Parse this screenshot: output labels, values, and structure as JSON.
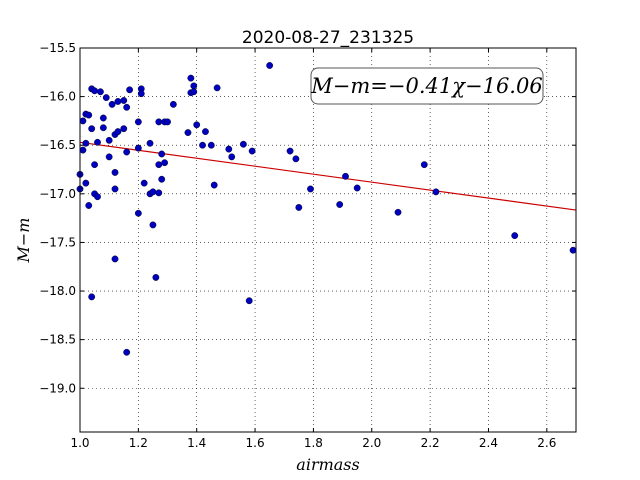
{
  "chart_data": {
    "type": "scatter",
    "title": "2020-08-27_231325",
    "xlabel": "airmass",
    "ylabel": "M−m",
    "xlim": [
      1.0,
      2.7
    ],
    "ylim": [
      -15.5,
      -19.45
    ],
    "y_inverted": true,
    "grid": true,
    "x_ticks": [
      1.0,
      1.2,
      1.4,
      1.6,
      1.8,
      2.0,
      2.2,
      2.4,
      2.6
    ],
    "x_tick_labels": [
      "1.0",
      "1.2",
      "1.4",
      "1.6",
      "1.8",
      "2.0",
      "2.2",
      "2.4",
      "2.6"
    ],
    "y_ticks": [
      -15.5,
      -16.0,
      -16.5,
      -17.0,
      -17.5,
      -18.0,
      -18.5,
      -19.0
    ],
    "y_tick_labels": [
      "−15.5",
      "−16.0",
      "−16.5",
      "−17.0",
      "−17.5",
      "−18.0",
      "−18.5",
      "−19.0"
    ],
    "annotation": "M−m=−0.41χ−16.06",
    "point_color": "#0000bf",
    "fit_color": "#cc0000",
    "fit": {
      "slope": -0.41,
      "intercept": -16.06,
      "x": [
        1.0,
        2.7
      ]
    },
    "points": [
      [
        1.0,
        -16.8
      ],
      [
        1.0,
        -16.95
      ],
      [
        1.01,
        -16.25
      ],
      [
        1.01,
        -16.55
      ],
      [
        1.02,
        -16.48
      ],
      [
        1.02,
        -16.89
      ],
      [
        1.02,
        -16.18
      ],
      [
        1.03,
        -17.12
      ],
      [
        1.03,
        -16.19
      ],
      [
        1.04,
        -15.92
      ],
      [
        1.04,
        -18.06
      ],
      [
        1.04,
        -16.33
      ],
      [
        1.05,
        -16.7
      ],
      [
        1.05,
        -15.94
      ],
      [
        1.05,
        -17.0
      ],
      [
        1.06,
        -16.47
      ],
      [
        1.06,
        -17.03
      ],
      [
        1.07,
        -15.95
      ],
      [
        1.08,
        -16.22
      ],
      [
        1.08,
        -16.32
      ],
      [
        1.09,
        -16.01
      ],
      [
        1.1,
        -16.62
      ],
      [
        1.1,
        -16.45
      ],
      [
        1.11,
        -16.08
      ],
      [
        1.12,
        -16.95
      ],
      [
        1.12,
        -16.78
      ],
      [
        1.12,
        -17.67
      ],
      [
        1.12,
        -16.39
      ],
      [
        1.13,
        -16.05
      ],
      [
        1.13,
        -16.36
      ],
      [
        1.15,
        -16.33
      ],
      [
        1.15,
        -16.04
      ],
      [
        1.16,
        -16.57
      ],
      [
        1.16,
        -16.11
      ],
      [
        1.16,
        -18.63
      ],
      [
        1.17,
        -15.93
      ],
      [
        1.2,
        -16.53
      ],
      [
        1.2,
        -16.26
      ],
      [
        1.2,
        -17.2
      ],
      [
        1.21,
        -15.92
      ],
      [
        1.21,
        -15.97
      ],
      [
        1.22,
        -16.89
      ],
      [
        1.24,
        -16.48
      ],
      [
        1.24,
        -17.0
      ],
      [
        1.25,
        -17.32
      ],
      [
        1.25,
        -16.98
      ],
      [
        1.26,
        -17.86
      ],
      [
        1.27,
        -16.99
      ],
      [
        1.27,
        -16.26
      ],
      [
        1.27,
        -16.7
      ],
      [
        1.28,
        -16.59
      ],
      [
        1.28,
        -16.85
      ],
      [
        1.29,
        -16.68
      ],
      [
        1.29,
        -16.26
      ],
      [
        1.3,
        -16.26
      ],
      [
        1.32,
        -16.08
      ],
      [
        1.37,
        -16.37
      ],
      [
        1.38,
        -15.81
      ],
      [
        1.38,
        -15.96
      ],
      [
        1.39,
        -15.89
      ],
      [
        1.39,
        -15.95
      ],
      [
        1.4,
        -16.29
      ],
      [
        1.42,
        -16.5
      ],
      [
        1.43,
        -16.36
      ],
      [
        1.45,
        -16.5
      ],
      [
        1.46,
        -16.91
      ],
      [
        1.47,
        -15.91
      ],
      [
        1.51,
        -16.54
      ],
      [
        1.52,
        -16.62
      ],
      [
        1.56,
        -16.49
      ],
      [
        1.58,
        -18.1
      ],
      [
        1.59,
        -16.56
      ],
      [
        1.65,
        -15.68
      ],
      [
        1.72,
        -16.56
      ],
      [
        1.74,
        -16.64
      ],
      [
        1.75,
        -17.14
      ],
      [
        1.79,
        -16.95
      ],
      [
        1.89,
        -17.11
      ],
      [
        1.91,
        -16.82
      ],
      [
        1.95,
        -16.94
      ],
      [
        2.09,
        -17.19
      ],
      [
        2.18,
        -16.7
      ],
      [
        2.22,
        -16.98
      ],
      [
        2.49,
        -17.43
      ],
      [
        2.69,
        -17.58
      ]
    ]
  }
}
